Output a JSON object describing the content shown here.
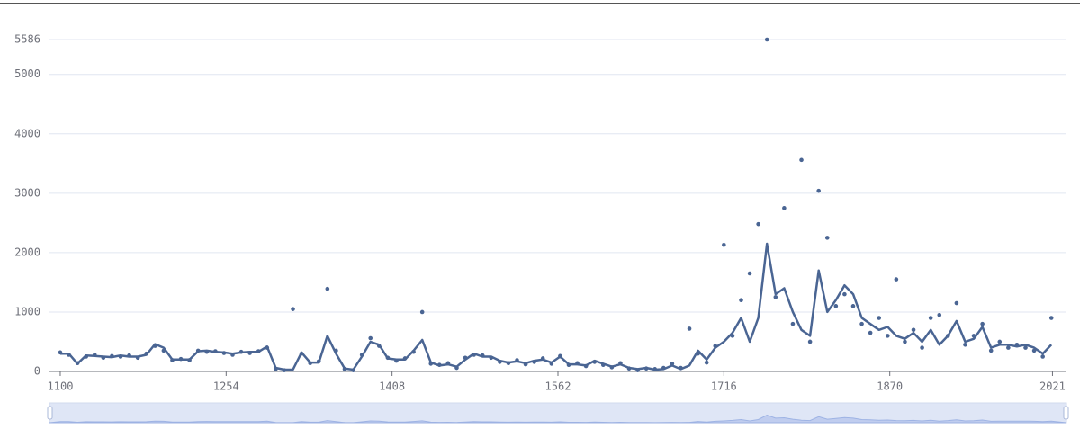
{
  "chart_data": {
    "type": "line",
    "x": [
      1100,
      1108,
      1116,
      1124,
      1132,
      1140,
      1148,
      1156,
      1164,
      1172,
      1180,
      1188,
      1196,
      1204,
      1212,
      1220,
      1228,
      1236,
      1244,
      1252,
      1260,
      1268,
      1276,
      1284,
      1292,
      1300,
      1308,
      1316,
      1324,
      1332,
      1340,
      1348,
      1356,
      1364,
      1372,
      1380,
      1388,
      1396,
      1404,
      1412,
      1420,
      1428,
      1436,
      1444,
      1452,
      1460,
      1468,
      1476,
      1484,
      1492,
      1500,
      1508,
      1516,
      1524,
      1532,
      1540,
      1548,
      1556,
      1564,
      1572,
      1580,
      1588,
      1596,
      1604,
      1612,
      1620,
      1628,
      1636,
      1644,
      1652,
      1660,
      1668,
      1676,
      1684,
      1692,
      1700,
      1708,
      1716,
      1724,
      1732,
      1740,
      1748,
      1756,
      1764,
      1772,
      1780,
      1788,
      1796,
      1804,
      1812,
      1820,
      1828,
      1836,
      1844,
      1852,
      1860,
      1868,
      1876,
      1884,
      1892,
      1900,
      1908,
      1916,
      1924,
      1932,
      1940,
      1948,
      1956,
      1964,
      1972,
      1980,
      1988,
      1996,
      2004,
      2012,
      2020
    ],
    "series": [
      {
        "type": "scatter",
        "color": "#4a6593",
        "values": [
          320,
          280,
          140,
          250,
          280,
          230,
          260,
          250,
          270,
          230,
          300,
          430,
          350,
          190,
          210,
          190,
          350,
          330,
          340,
          310,
          280,
          330,
          310,
          340,
          400,
          40,
          20,
          1050,
          300,
          140,
          170,
          1390,
          350,
          40,
          20,
          280,
          560,
          430,
          230,
          180,
          220,
          330,
          1000,
          130,
          110,
          140,
          60,
          230,
          280,
          270,
          230,
          160,
          140,
          190,
          120,
          160,
          220,
          130,
          260,
          110,
          140,
          90,
          160,
          110,
          70,
          140,
          50,
          20,
          50,
          40,
          60,
          130,
          60,
          720,
          300,
          150,
          430,
          2130,
          600,
          1200,
          1650,
          2480,
          5586,
          1250,
          2750,
          800,
          3560,
          500,
          3040,
          2250,
          1100,
          1300,
          1100,
          800,
          650,
          900,
          600,
          1550,
          500,
          700,
          400,
          900,
          950,
          600,
          1150,
          450,
          600,
          800,
          350,
          500,
          400,
          450,
          400,
          350,
          250,
          900
        ]
      },
      {
        "type": "line",
        "color": "#4a6593",
        "values": [
          300,
          300,
          130,
          270,
          260,
          250,
          240,
          270,
          250,
          250,
          280,
          460,
          400,
          200,
          200,
          200,
          340,
          350,
          330,
          320,
          300,
          320,
          330,
          330,
          420,
          60,
          30,
          30,
          320,
          150,
          150,
          600,
          300,
          50,
          30,
          250,
          500,
          450,
          220,
          200,
          200,
          350,
          530,
          150,
          100,
          120,
          80,
          200,
          300,
          250,
          250,
          180,
          150,
          170,
          140,
          180,
          200,
          150,
          250,
          120,
          120,
          100,
          180,
          130,
          80,
          120,
          60,
          40,
          60,
          30,
          40,
          100,
          40,
          100,
          350,
          200,
          400,
          500,
          650,
          900,
          500,
          900,
          2150,
          1300,
          1400,
          1000,
          700,
          600,
          1700,
          1000,
          1200,
          1450,
          1300,
          900,
          800,
          700,
          750,
          600,
          550,
          650,
          500,
          700,
          450,
          600,
          850,
          500,
          550,
          750,
          400,
          450,
          450,
          420,
          450,
          400,
          300,
          450
        ]
      }
    ],
    "xlim": [
      1090,
      2034
    ],
    "xticks": [
      1100,
      1254,
      1408,
      1562,
      1716,
      1870,
      2021
    ],
    "ylim": [
      0,
      5586
    ],
    "yticks": [
      0,
      1000,
      2000,
      3000,
      4000,
      5000,
      5586
    ],
    "grid": true,
    "zoom_slider": true
  }
}
